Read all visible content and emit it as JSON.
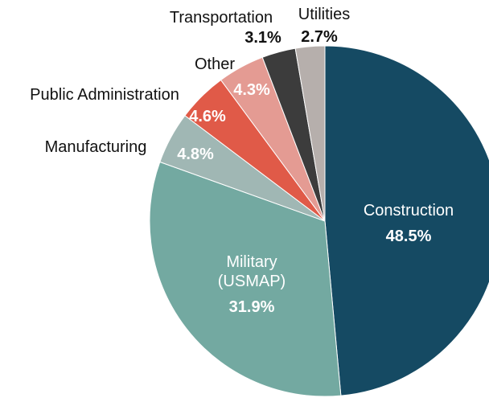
{
  "chart_data": {
    "type": "pie",
    "categories": [
      "Construction",
      "Military (USMAP)",
      "Manufacturing",
      "Public Administration",
      "Other",
      "Transportation",
      "Utilities"
    ],
    "values": [
      48.5,
      31.9,
      4.8,
      4.6,
      4.3,
      3.1,
      2.7
    ],
    "value_labels": [
      "48.5%",
      "31.9%",
      "4.8%",
      "4.6%",
      "4.3%",
      "3.1%",
      "2.7%"
    ],
    "colors": [
      "#154a63",
      "#73a9a1",
      "#a0b7b4",
      "#e05a48",
      "#e49b93",
      "#3c3c3c",
      "#b6afac"
    ]
  }
}
